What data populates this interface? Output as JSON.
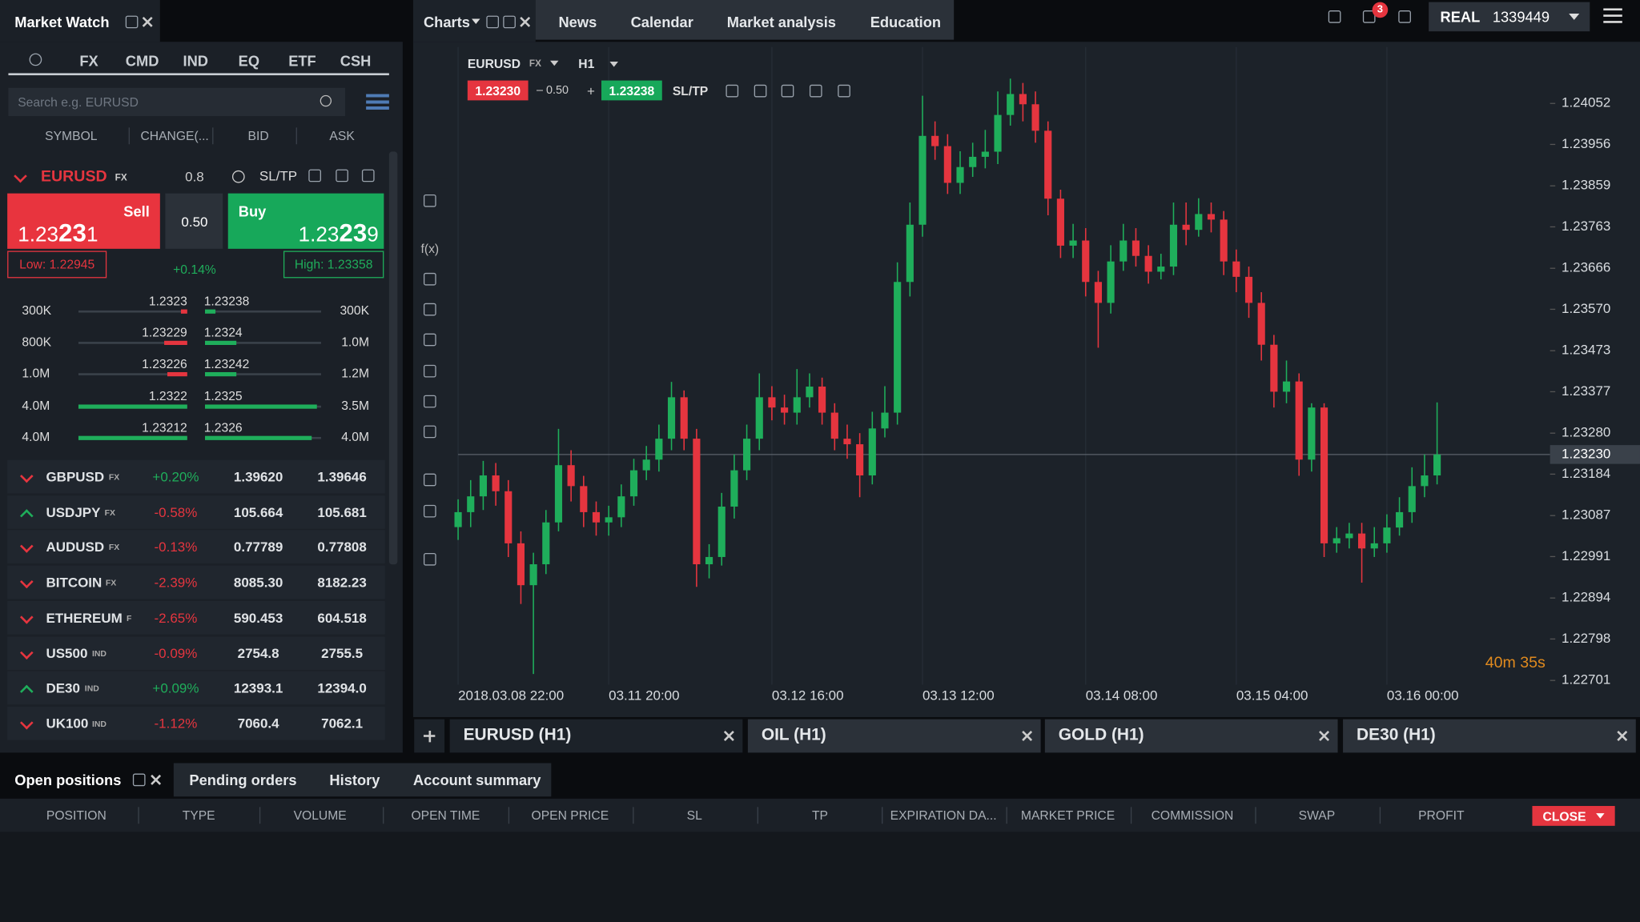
{
  "header": {
    "market_watch_title": "Market Watch",
    "tabs": [
      "Charts",
      "News",
      "Calendar",
      "Market analysis",
      "Education"
    ],
    "notifications": "3",
    "account_type": "REAL",
    "account_number": "1339449"
  },
  "market_watch": {
    "categories": [
      "FX",
      "CMD",
      "IND",
      "EQ",
      "ETF",
      "CSH"
    ],
    "search_placeholder": "Search e.g. EURUSD",
    "columns": [
      "SYMBOL",
      "CHANGE(...",
      "BID",
      "ASK"
    ],
    "selected": {
      "symbol": "EURUSD",
      "type": "FX",
      "change": "0.8",
      "sltp": "SL/TP",
      "sell_label": "Sell",
      "sell_price": "1.23231",
      "spread": "0.50",
      "buy_label": "Buy",
      "buy_price": "1.23239",
      "low": "Low: 1.22945",
      "high": "High: 1.23358",
      "change_pct": "+0.14%"
    },
    "depth": [
      {
        "bid_volume": "300K",
        "bid": "1.2323",
        "ask": "1.23238",
        "ask_volume": "300K"
      },
      {
        "bid_volume": "800K",
        "bid": "1.23229",
        "ask": "1.2324",
        "ask_volume": "1.0M"
      },
      {
        "bid_volume": "1.0M",
        "bid": "1.23226",
        "ask": "1.23242",
        "ask_volume": "1.2M"
      },
      {
        "bid_volume": "4.0M",
        "bid": "1.2322",
        "ask": "1.2325",
        "ask_volume": "3.5M"
      },
      {
        "bid_volume": "4.0M",
        "bid": "1.23212",
        "ask": "1.2326",
        "ask_volume": "4.0M"
      }
    ],
    "instruments": [
      {
        "symbol": "GBPUSD",
        "type": "FX",
        "change": "+0.20%",
        "bid": "1.39620",
        "ask": "1.39646",
        "direction": "down"
      },
      {
        "symbol": "USDJPY",
        "type": "FX",
        "change": "-0.58%",
        "bid": "105.664",
        "ask": "105.681",
        "direction": "up"
      },
      {
        "symbol": "AUDUSD",
        "type": "FX",
        "change": "-0.13%",
        "bid": "0.77789",
        "ask": "0.77808",
        "direction": "down"
      },
      {
        "symbol": "BITCOIN",
        "type": "FX",
        "change": "-2.39%",
        "bid": "8085.30",
        "ask": "8182.23",
        "direction": "down"
      },
      {
        "symbol": "ETHEREUM",
        "type": "F",
        "change": "-2.65%",
        "bid": "590.453",
        "ask": "604.518",
        "direction": "down"
      },
      {
        "symbol": "US500",
        "type": "IND",
        "change": "-0.09%",
        "bid": "2754.8",
        "ask": "2755.5",
        "direction": "down"
      },
      {
        "symbol": "DE30",
        "type": "IND",
        "change": "+0.09%",
        "bid": "12393.1",
        "ask": "12394.0",
        "direction": "up"
      },
      {
        "symbol": "UK100",
        "type": "IND",
        "change": "-1.12%",
        "bid": "7060.4",
        "ask": "7062.1",
        "direction": "down"
      }
    ]
  },
  "chart_header": {
    "symbol": "EURUSD",
    "type": "FX",
    "timeframe": "H1",
    "bid": "1.23230",
    "spread": "– 0.50",
    "plus": "+",
    "ask": "1.23238",
    "sltp": "SL/TP",
    "tool": "f(x)",
    "countdown": "40m 35s"
  },
  "chart_data": {
    "type": "candlestick",
    "up_color": "#1fae5b",
    "down_color": "#e5353f",
    "grid": true,
    "ylim": [
      1.22691,
      1.24184
    ],
    "yticks": [
      1.24052,
      1.23956,
      1.23859,
      1.23763,
      1.23666,
      {
        "value": 1.2357,
        "label": "1.23570"
      },
      1.23473,
      1.23377,
      {
        "value": 1.2328,
        "label": "1.23280"
      },
      1.23184,
      1.23087,
      1.22991,
      1.22894,
      1.22798,
      1.22701
    ],
    "xticks": [
      {
        "value": 0,
        "label": "2018.03.08 22:00"
      },
      {
        "value": 12,
        "label": "03.11 20:00"
      },
      {
        "value": 25,
        "label": "03.12 16:00"
      },
      {
        "value": 37,
        "label": "03.13 12:00"
      },
      {
        "value": 50,
        "label": "03.14 08:00"
      },
      {
        "value": 62,
        "label": "03.15 04:00"
      },
      {
        "value": 74,
        "label": "03.16 00:00"
      }
    ],
    "current_price": {
      "value": 1.2323,
      "label": "1.23230"
    },
    "open": [
      1.2306,
      1.23095,
      1.23132,
      1.23181,
      1.23144,
      1.23022,
      1.22924,
      1.22973,
      1.23071,
      1.23205,
      1.23156,
      1.23095,
      1.23071,
      1.23083,
      1.23132,
      1.23193,
      1.23218,
      1.23267,
      1.23364,
      1.23267,
      1.22973,
      1.2299,
      1.23108,
      1.23193,
      1.23267,
      1.23364,
      1.2334,
      1.23328,
      1.23364,
      1.23389,
      1.23328,
      1.23267,
      1.23254,
      1.23181,
      1.23291,
      1.23328,
      1.23634,
      1.23768,
      1.23976,
      1.23952,
      1.23866,
      1.23903,
      1.23927,
      1.23939,
      1.24025,
      1.24074,
      1.2405,
      1.23988,
      1.23829,
      1.23719,
      1.23731,
      1.23634,
      1.23585,
      1.23682,
      1.23731,
      1.23695,
      1.23658,
      1.2367,
      1.23768,
      1.23756,
      1.23793,
      1.2378,
      1.23682,
      1.23646,
      1.23585,
      1.23487,
      1.23377,
      1.23401,
      1.23218,
      1.2334,
      1.23022,
      1.23034,
      1.23045,
      1.2301,
      1.23022,
      1.23059,
      1.23095,
      1.23156,
      1.23181
    ],
    "high": [
      1.23125,
      1.2317,
      1.23215,
      1.2321,
      1.2317,
      1.2305,
      1.23,
      1.231,
      1.2329,
      1.2324,
      1.2318,
      1.2312,
      1.2311,
      1.2316,
      1.2322,
      1.2325,
      1.233,
      1.234,
      1.2338,
      1.2329,
      1.2302,
      1.2314,
      1.2323,
      1.233,
      1.2342,
      1.2339,
      1.2337,
      1.2343,
      1.2342,
      1.2341,
      1.2335,
      1.233,
      1.2328,
      1.2333,
      1.2339,
      1.2368,
      1.2382,
      1.2407,
      1.2401,
      1.2398,
      1.2394,
      1.2396,
      1.2399,
      1.2408,
      1.2411,
      1.241,
      1.2408,
      1.2401,
      1.2385,
      1.2377,
      1.2376,
      1.2366,
      1.2372,
      1.2377,
      1.2376,
      1.2372,
      1.237,
      1.2382,
      1.2382,
      1.2383,
      1.2382,
      1.238,
      1.2371,
      1.2367,
      1.2361,
      1.2351,
      1.2345,
      1.2342,
      1.2335,
      1.2335,
      1.2306,
      1.2307,
      1.2307,
      1.2306,
      1.2309,
      1.2313,
      1.232,
      1.2323,
      1.23352
    ],
    "low": [
      1.2303,
      1.2306,
      1.231,
      1.2311,
      1.2299,
      1.2288,
      1.22716,
      1.2295,
      1.2305,
      1.2312,
      1.2306,
      1.2304,
      1.2304,
      1.2306,
      1.2311,
      1.2317,
      1.2319,
      1.2324,
      1.2324,
      1.2292,
      1.2294,
      1.2297,
      1.2308,
      1.2317,
      1.2324,
      1.2331,
      1.233,
      1.233,
      1.2334,
      1.233,
      1.2324,
      1.2322,
      1.2313,
      1.2316,
      1.2327,
      1.233,
      1.236,
      1.2374,
      1.2392,
      1.2384,
      1.2384,
      1.2388,
      1.239,
      1.2391,
      1.24,
      1.2401,
      1.2396,
      1.2379,
      1.2369,
      1.2369,
      1.236,
      1.2348,
      1.2356,
      1.2366,
      1.2367,
      1.2363,
      1.2364,
      1.2365,
      1.2372,
      1.2374,
      1.2375,
      1.2365,
      1.2361,
      1.2355,
      1.2345,
      1.2334,
      1.2335,
      1.2318,
      1.2319,
      1.2299,
      1.23,
      1.2301,
      1.2293,
      1.2299,
      1.23,
      1.2304,
      1.2307,
      1.2313,
      1.2316
    ],
    "close": [
      1.23095,
      1.23132,
      1.23181,
      1.23144,
      1.23022,
      1.22924,
      1.22973,
      1.23071,
      1.23205,
      1.23156,
      1.23095,
      1.23071,
      1.23083,
      1.23132,
      1.23193,
      1.23218,
      1.23267,
      1.23364,
      1.23267,
      1.22973,
      1.2299,
      1.23108,
      1.23193,
      1.23267,
      1.23364,
      1.2334,
      1.23328,
      1.23364,
      1.23389,
      1.23328,
      1.23267,
      1.23254,
      1.23181,
      1.23291,
      1.23328,
      1.23634,
      1.23768,
      1.23976,
      1.23952,
      1.23866,
      1.23903,
      1.23927,
      1.23939,
      1.24025,
      1.24074,
      1.2405,
      1.23988,
      1.23829,
      1.23719,
      1.23731,
      1.23634,
      1.23585,
      1.23682,
      1.23731,
      1.23695,
      1.23658,
      1.2367,
      1.23768,
      1.23756,
      1.23793,
      1.2378,
      1.23682,
      1.23646,
      1.23585,
      1.23487,
      1.23377,
      1.23401,
      1.23218,
      1.2334,
      1.23022,
      1.23034,
      1.23045,
      1.2301,
      1.23022,
      1.23059,
      1.23095,
      1.23156,
      1.23181,
      1.2323
    ]
  },
  "chart_tabs": [
    "EURUSD (H1)",
    "OIL (H1)",
    "GOLD (H1)",
    "DE30 (H1)"
  ],
  "bottom_panel": {
    "tabs": [
      "Open positions",
      "Pending orders",
      "History",
      "Account summary"
    ],
    "columns": [
      "POSITION",
      "TYPE",
      "VOLUME",
      "OPEN TIME",
      "OPEN PRICE",
      "SL",
      "TP",
      "EXPIRATION DA...",
      "MARKET PRICE",
      "COMMISSION",
      "SWAP",
      "PROFIT"
    ],
    "close_button": "CLOSE"
  }
}
